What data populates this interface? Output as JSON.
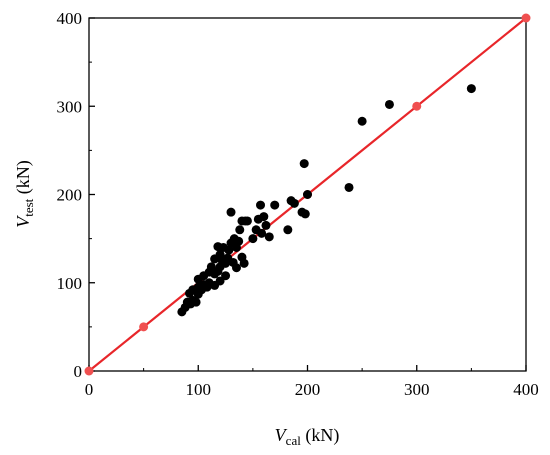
{
  "chart_data": {
    "type": "scatter",
    "xlabel": {
      "var": "V",
      "sub": "cal",
      "unit": " (kN)"
    },
    "ylabel": {
      "var": "V",
      "sub": "test",
      "unit": " (kN)"
    },
    "xlim": [
      0,
      400
    ],
    "ylim": [
      0,
      400
    ],
    "xticks": [
      0,
      100,
      200,
      300,
      400
    ],
    "yticks": [
      0,
      100,
      200,
      300,
      400
    ],
    "grid": false,
    "series": [
      {
        "kind": "points",
        "color": "#000000",
        "points": [
          [
            85,
            67
          ],
          [
            88,
            72
          ],
          [
            90,
            78
          ],
          [
            93,
            76
          ],
          [
            95,
            80
          ],
          [
            92,
            88
          ],
          [
            95,
            92
          ],
          [
            98,
            78
          ],
          [
            100,
            87
          ],
          [
            100,
            95
          ],
          [
            100,
            104
          ],
          [
            103,
            92
          ],
          [
            105,
            98
          ],
          [
            105,
            108
          ],
          [
            108,
            95
          ],
          [
            110,
            112
          ],
          [
            110,
            100
          ],
          [
            112,
            118
          ],
          [
            115,
            97
          ],
          [
            115,
            110
          ],
          [
            115,
            127
          ],
          [
            118,
            113
          ],
          [
            118,
            141
          ],
          [
            120,
            102
          ],
          [
            120,
            118
          ],
          [
            120,
            132
          ],
          [
            122,
            125
          ],
          [
            123,
            140
          ],
          [
            125,
            122
          ],
          [
            125,
            108
          ],
          [
            127,
            128
          ],
          [
            128,
            137
          ],
          [
            130,
            145
          ],
          [
            130,
            180
          ],
          [
            132,
            123
          ],
          [
            133,
            150
          ],
          [
            135,
            117
          ],
          [
            135,
            140
          ],
          [
            137,
            147
          ],
          [
            138,
            160
          ],
          [
            140,
            170
          ],
          [
            140,
            129
          ],
          [
            142,
            122
          ],
          [
            143,
            170
          ],
          [
            145,
            170
          ],
          [
            150,
            150
          ],
          [
            153,
            160
          ],
          [
            155,
            172
          ],
          [
            157,
            188
          ],
          [
            158,
            156
          ],
          [
            160,
            175
          ],
          [
            162,
            165
          ],
          [
            165,
            152
          ],
          [
            170,
            188
          ],
          [
            182,
            160
          ],
          [
            185,
            193
          ],
          [
            188,
            190
          ],
          [
            195,
            180
          ],
          [
            197,
            235
          ],
          [
            198,
            178
          ],
          [
            200,
            200
          ],
          [
            238,
            208
          ],
          [
            250,
            283
          ],
          [
            275,
            302
          ],
          [
            350,
            320
          ]
        ]
      },
      {
        "kind": "line",
        "color": "#e8262a",
        "marker_color": "#f05050",
        "points": [
          [
            0,
            0
          ],
          [
            50,
            50
          ],
          [
            200,
            200
          ],
          [
            300,
            300
          ],
          [
            400,
            400
          ]
        ]
      }
    ]
  }
}
